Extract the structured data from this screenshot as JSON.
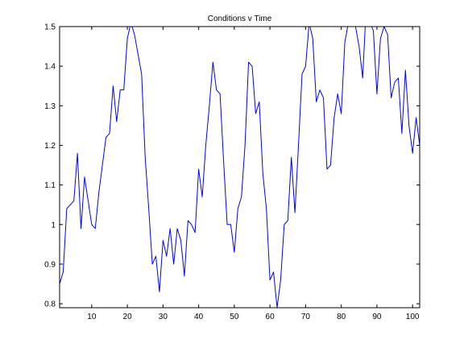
{
  "chart_data": {
    "type": "line",
    "title": "Conditions v Time",
    "xlabel": "",
    "ylabel": "",
    "xlim": [
      1,
      102
    ],
    "ylim": [
      0.79,
      1.5
    ],
    "grid": false,
    "xticks": [
      10,
      20,
      30,
      40,
      50,
      60,
      70,
      80,
      90,
      100
    ],
    "xtick_labels": [
      "10",
      "20",
      "30",
      "40",
      "50",
      "60",
      "70",
      "80",
      "90",
      "100"
    ],
    "yticks": [
      0.8,
      0.9,
      1.0,
      1.1,
      1.2,
      1.3,
      1.4,
      1.5
    ],
    "ytick_labels": [
      "0.8",
      "0.9",
      "1",
      "1.1",
      "1.2",
      "1.3",
      "1.4",
      "1.5"
    ],
    "colors": {
      "line": "#0000ff",
      "axes": "#000000",
      "background": "#ffffff"
    },
    "series": [
      {
        "x": [
          1,
          2,
          3,
          4,
          5,
          6,
          7,
          8,
          9,
          10,
          11,
          12,
          13,
          14,
          15,
          16,
          17,
          18,
          19,
          20,
          21,
          22,
          23,
          24,
          25,
          26,
          27,
          28,
          29,
          30,
          31,
          32,
          33,
          34,
          35,
          36,
          37,
          38,
          39,
          40,
          41,
          42,
          43,
          44,
          45,
          46,
          47,
          48,
          49,
          50,
          51,
          52,
          53,
          54,
          55,
          56,
          57,
          58,
          59,
          60,
          61,
          62,
          63,
          64,
          65,
          66,
          67,
          68,
          69,
          70,
          71,
          72,
          73,
          74,
          75,
          76,
          77,
          78,
          79,
          80,
          81,
          82,
          83,
          84,
          85,
          86,
          87,
          88,
          89,
          90,
          91,
          92,
          93,
          94,
          95,
          96,
          97,
          98,
          99,
          100,
          101,
          102
        ],
        "y": [
          0.85,
          0.88,
          1.04,
          1.05,
          1.06,
          1.18,
          0.99,
          1.12,
          1.06,
          1.0,
          0.99,
          1.08,
          1.15,
          1.22,
          1.23,
          1.35,
          1.26,
          1.34,
          1.34,
          1.47,
          1.51,
          1.48,
          1.43,
          1.38,
          1.17,
          1.04,
          0.9,
          0.92,
          0.83,
          0.96,
          0.92,
          0.99,
          0.9,
          0.99,
          0.96,
          0.87,
          1.01,
          1.0,
          0.98,
          1.14,
          1.07,
          1.2,
          1.3,
          1.41,
          1.34,
          1.33,
          1.16,
          1.0,
          1.0,
          0.93,
          1.04,
          1.07,
          1.2,
          1.41,
          1.4,
          1.28,
          1.31,
          1.13,
          1.04,
          0.86,
          0.88,
          0.79,
          0.86,
          1.0,
          1.01,
          1.17,
          1.03,
          1.2,
          1.38,
          1.4,
          1.51,
          1.47,
          1.31,
          1.34,
          1.32,
          1.14,
          1.15,
          1.27,
          1.33,
          1.28,
          1.46,
          1.51,
          1.58,
          1.5,
          1.45,
          1.37,
          1.55,
          1.51,
          1.49,
          1.33,
          1.47,
          1.5,
          1.48,
          1.32,
          1.36,
          1.37,
          1.23,
          1.39,
          1.25,
          1.18,
          1.27,
          1.2
        ]
      }
    ]
  }
}
